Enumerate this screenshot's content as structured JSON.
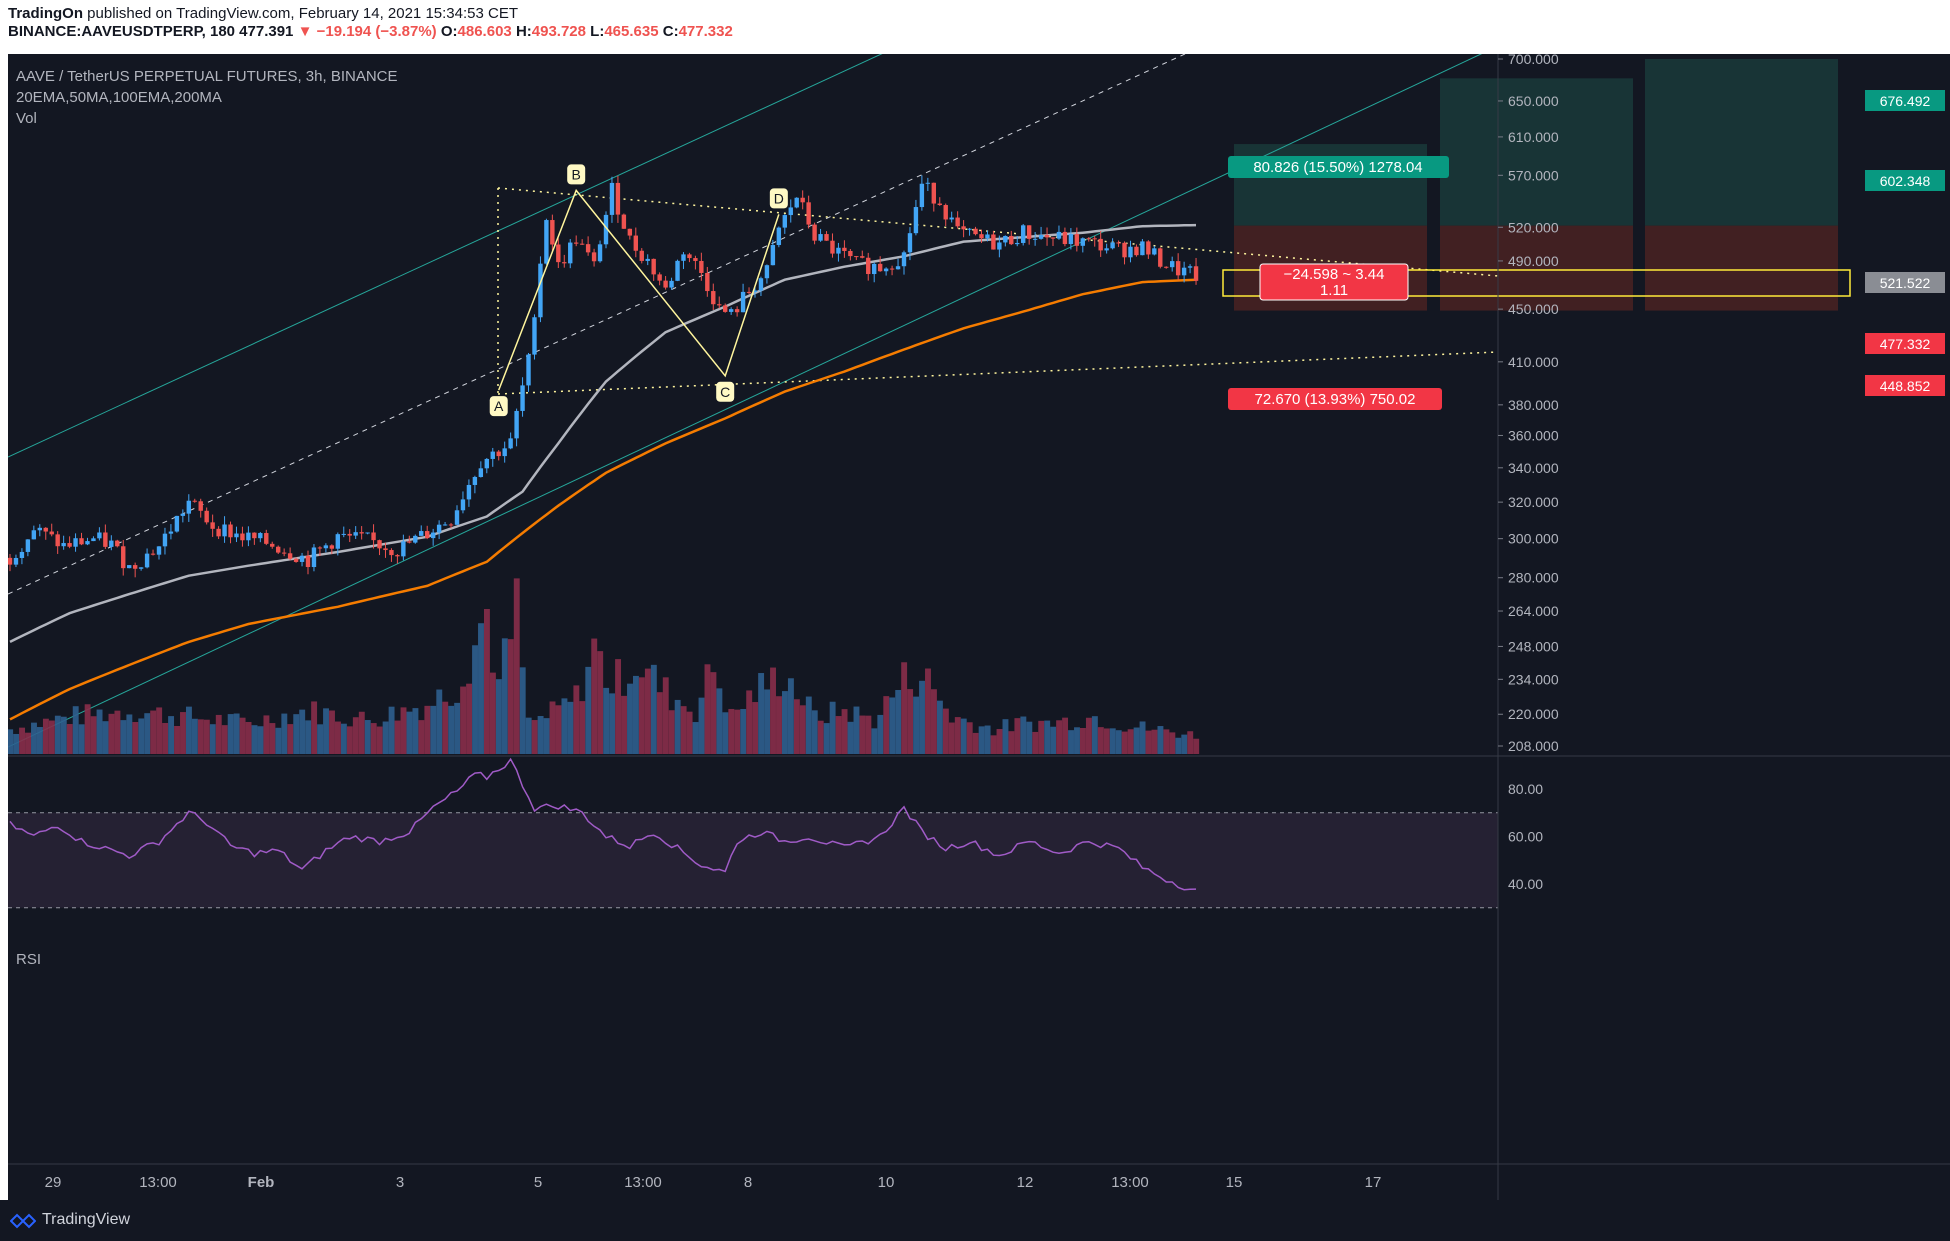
{
  "header": {
    "publisher": "TradingOn",
    "published_text": "published on TradingView.com, February 14, 2021 15:34:53 CET",
    "symbol": "BINANCE:AAVEUSDTPERP, 180",
    "last": "477.391",
    "change": "▼ −19.194 (−3.87%)",
    "o_label": "O:",
    "o_value": "486.603",
    "h_label": "H:",
    "h_value": "493.728",
    "l_label": "L:",
    "l_value": "465.635",
    "c_label": "C:",
    "c_value": "477.332"
  },
  "legend": {
    "title": "AAVE / TetherUS PERPETUAL FUTURES, 3h, BINANCE",
    "indicators": "20EMA,50MA,100EMA,200MA",
    "vol": "Vol",
    "rsi": "RSI"
  },
  "pattern_labels": {
    "a": "A",
    "b": "B",
    "c": "C",
    "d": "D"
  },
  "position": {
    "target_label": "80.826 (15.50%) 1278.04",
    "stop_label": "72.670 (13.93%) 750.02",
    "entry_label_line1": "−24.598 ~ 3.44",
    "entry_label_line2": "1.11"
  },
  "price_badges": {
    "b1": "676.492",
    "b2": "602.348",
    "b3": "521.522",
    "b4": "477.332",
    "b5": "448.852"
  },
  "colors": {
    "background": "#131722",
    "up": "#42a5f5",
    "down": "#ef5350",
    "ema20": "#b2b5be",
    "ema100": "#f57c00",
    "channel": "#26a69a",
    "rsi": "#a05bc7",
    "target_zone": "#1a3a3a",
    "stop_zone": "#4a2222",
    "highlight_box": "#ffeb3b"
  },
  "footer": {
    "brand": "TradingView"
  },
  "chart_data": {
    "type": "candlestick",
    "title": "AAVE / TetherUS PERPETUAL FUTURES, 3h, BINANCE",
    "x_ticks": [
      "29",
      "13:00",
      "Feb",
      "3",
      "5",
      "13:00",
      "8",
      "10",
      "12",
      "13:00",
      "15",
      "17"
    ],
    "y_ticks": [
      "700.000",
      "650.000",
      "610.000",
      "570.000",
      "520.000",
      "490.000",
      "450.000",
      "410.000",
      "380.000",
      "360.000",
      "340.000",
      "320.000",
      "300.000",
      "280.000",
      "264.000",
      "248.000",
      "234.000",
      "220.000",
      "208.000"
    ],
    "y_scale": "log",
    "rsi_ticks": [
      "80.00",
      "60.00",
      "40.00"
    ],
    "rsi_bands": [
      70,
      30
    ],
    "price_anchors": [
      [
        0,
        290
      ],
      [
        4,
        305
      ],
      [
        9,
        296
      ],
      [
        14,
        300
      ],
      [
        17,
        297
      ],
      [
        20,
        285
      ],
      [
        25,
        296
      ],
      [
        30,
        320
      ],
      [
        34,
        307
      ],
      [
        39,
        301
      ],
      [
        44,
        297
      ],
      [
        50,
        289
      ],
      [
        55,
        301
      ],
      [
        60,
        299
      ],
      [
        65,
        294
      ],
      [
        70,
        303
      ],
      [
        74,
        311
      ],
      [
        79,
        344
      ],
      [
        84,
        355
      ],
      [
        87,
        410
      ],
      [
        90,
        530
      ],
      [
        92,
        485
      ],
      [
        95,
        510
      ],
      [
        98,
        485
      ],
      [
        101,
        555
      ],
      [
        104,
        508
      ],
      [
        107,
        490
      ],
      [
        110,
        465
      ],
      [
        113,
        500
      ],
      [
        116,
        480
      ],
      [
        119,
        450
      ],
      [
        121,
        445
      ],
      [
        124,
        465
      ],
      [
        127,
        480
      ],
      [
        129,
        518
      ],
      [
        132,
        549
      ],
      [
        135,
        512
      ],
      [
        138,
        500
      ],
      [
        142,
        487
      ],
      [
        146,
        485
      ],
      [
        150,
        495
      ],
      [
        153,
        560
      ],
      [
        156,
        545
      ],
      [
        159,
        515
      ],
      [
        162,
        510
      ],
      [
        166,
        505
      ],
      [
        170,
        515
      ],
      [
        174,
        511
      ],
      [
        178,
        508
      ],
      [
        182,
        505
      ],
      [
        186,
        500
      ],
      [
        190,
        502
      ],
      [
        193,
        490
      ],
      [
        196,
        482
      ],
      [
        199,
        477
      ]
    ],
    "ema20_anchors": [
      [
        0,
        250
      ],
      [
        10,
        263
      ],
      [
        20,
        272
      ],
      [
        30,
        281
      ],
      [
        40,
        286
      ],
      [
        55,
        293
      ],
      [
        70,
        301
      ],
      [
        80,
        312
      ],
      [
        86,
        326
      ],
      [
        92,
        355
      ],
      [
        100,
        396
      ],
      [
        110,
        432
      ],
      [
        120,
        452
      ],
      [
        130,
        474
      ],
      [
        140,
        485
      ],
      [
        150,
        494
      ],
      [
        160,
        507
      ],
      [
        170,
        511
      ],
      [
        180,
        515
      ],
      [
        190,
        521
      ],
      [
        199,
        522
      ]
    ],
    "ema100_anchors": [
      [
        0,
        218
      ],
      [
        10,
        230
      ],
      [
        20,
        240
      ],
      [
        30,
        250
      ],
      [
        40,
        258
      ],
      [
        55,
        266
      ],
      [
        70,
        276
      ],
      [
        80,
        288
      ],
      [
        86,
        303
      ],
      [
        92,
        318
      ],
      [
        100,
        337
      ],
      [
        110,
        355
      ],
      [
        120,
        371
      ],
      [
        130,
        389
      ],
      [
        140,
        403
      ],
      [
        150,
        419
      ],
      [
        160,
        435
      ],
      [
        170,
        448
      ],
      [
        180,
        462
      ],
      [
        190,
        472
      ],
      [
        199,
        474
      ]
    ],
    "rsi_anchors": [
      [
        0,
        65
      ],
      [
        4,
        60
      ],
      [
        8,
        65
      ],
      [
        12,
        58
      ],
      [
        16,
        55
      ],
      [
        20,
        52
      ],
      [
        25,
        58
      ],
      [
        30,
        70
      ],
      [
        33,
        66
      ],
      [
        37,
        56
      ],
      [
        41,
        53
      ],
      [
        45,
        54
      ],
      [
        49,
        46
      ],
      [
        53,
        54
      ],
      [
        57,
        60
      ],
      [
        62,
        58
      ],
      [
        67,
        62
      ],
      [
        71,
        72
      ],
      [
        75,
        79
      ],
      [
        78,
        86
      ],
      [
        80,
        85
      ],
      [
        84,
        92
      ],
      [
        88,
        72
      ],
      [
        92,
        73
      ],
      [
        96,
        70
      ],
      [
        100,
        60
      ],
      [
        104,
        56
      ],
      [
        108,
        62
      ],
      [
        112,
        55
      ],
      [
        116,
        48
      ],
      [
        120,
        45
      ],
      [
        122,
        58
      ],
      [
        126,
        62
      ],
      [
        130,
        58
      ],
      [
        134,
        60
      ],
      [
        140,
        55
      ],
      [
        146,
        60
      ],
      [
        150,
        72
      ],
      [
        153,
        62
      ],
      [
        157,
        55
      ],
      [
        161,
        58
      ],
      [
        166,
        52
      ],
      [
        171,
        58
      ],
      [
        176,
        53
      ],
      [
        181,
        58
      ],
      [
        186,
        55
      ],
      [
        190,
        47
      ],
      [
        194,
        42
      ],
      [
        199,
        37
      ]
    ],
    "volume_anchors": [
      [
        0,
        40
      ],
      [
        10,
        60
      ],
      [
        20,
        70
      ],
      [
        30,
        60
      ],
      [
        40,
        50
      ],
      [
        50,
        70
      ],
      [
        60,
        55
      ],
      [
        70,
        80
      ],
      [
        75,
        110
      ],
      [
        80,
        230
      ],
      [
        82,
        110
      ],
      [
        85,
        230
      ],
      [
        87,
        50
      ],
      [
        90,
        60
      ],
      [
        95,
        90
      ],
      [
        98,
        170
      ],
      [
        101,
        110
      ],
      [
        105,
        150
      ],
      [
        110,
        100
      ],
      [
        115,
        70
      ],
      [
        118,
        140
      ],
      [
        121,
        60
      ],
      [
        125,
        100
      ],
      [
        130,
        130
      ],
      [
        135,
        60
      ],
      [
        140,
        70
      ],
      [
        145,
        55
      ],
      [
        150,
        120
      ],
      [
        153,
        130
      ],
      [
        158,
        60
      ],
      [
        165,
        40
      ],
      [
        170,
        50
      ],
      [
        175,
        50
      ],
      [
        182,
        60
      ],
      [
        188,
        45
      ],
      [
        192,
        40
      ],
      [
        199,
        30
      ]
    ],
    "harmonic_points": [
      {
        "label": "A",
        "bar": 82,
        "price": 390
      },
      {
        "label": "B",
        "bar": 95,
        "price": 555
      },
      {
        "label": "C",
        "bar": 120,
        "price": 400
      },
      {
        "label": "D",
        "bar": 129,
        "price": 532
      }
    ],
    "trade_levels": {
      "entry": 521.522,
      "target": 602.348,
      "stop": 448.852,
      "last": 477.332
    }
  }
}
